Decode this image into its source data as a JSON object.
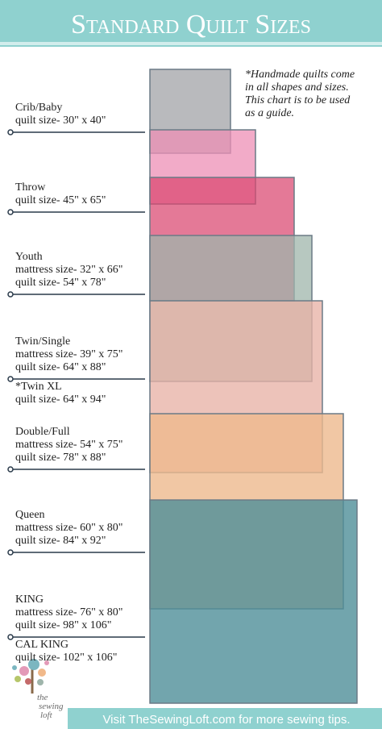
{
  "header": {
    "title": "Standard Quilt Sizes"
  },
  "note": [
    "*Handmade quilts come",
    "in all shapes and sizes.",
    "This chart is to be used",
    "as a guide."
  ],
  "sizes": [
    {
      "lines": [
        "Crib/Baby",
        "quilt size- 30\" x 40\""
      ]
    },
    {
      "lines": [
        "Throw",
        "quilt size- 45\" x 65\""
      ]
    },
    {
      "lines": [
        "Youth",
        "mattress size- 32\" x 66\"",
        "quilt size- 54\" x 78\""
      ]
    },
    {
      "lines": [
        "Twin/Single",
        "mattress size- 39\" x 75\"",
        "quilt size- 64\" x 88\""
      ],
      "extra": [
        "*Twin XL",
        "quilt size- 64\" x 94\""
      ]
    },
    {
      "lines": [
        "Double/Full",
        "mattress size- 54\" x  75\"",
        "quilt size- 78\" x 88\""
      ]
    },
    {
      "lines": [
        "Queen",
        "mattress size- 60\" x 80\"",
        "quilt size- 84\" x 92\""
      ]
    },
    {
      "lines": [
        "KING",
        "mattress size- 76\" x 80\"",
        "quilt size- 98\" x 106\""
      ],
      "extra": [
        "CAL KING",
        "quilt size- 102\" x 106\""
      ]
    }
  ],
  "logo": [
    "the",
    "sewing",
    "loft"
  ],
  "footer": {
    "text": "Visit TheSewingLoft.com for more sewing tips."
  }
}
